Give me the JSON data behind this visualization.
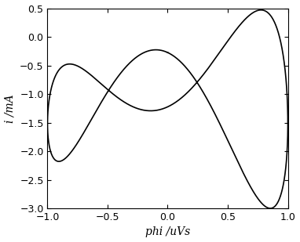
{
  "title": "",
  "xlabel": "phi /uVs",
  "ylabel": "i /mA",
  "xlim": [
    -1.0,
    1.0
  ],
  "ylim": [
    -3.0,
    0.5
  ],
  "xticks": [
    -1.0,
    -0.5,
    0.0,
    0.5,
    1.0
  ],
  "yticks": [
    0.5,
    0,
    -0.5,
    -1.0,
    -1.5,
    -2.0,
    -2.5,
    -3.0
  ],
  "line_color": "#000000",
  "line_width": 1.2,
  "bg_color": "#ffffff",
  "freq": 1.0,
  "amplitude": 1.0,
  "num_points": 4000,
  "alpha": 8.0,
  "a": 0.3,
  "b": -1.0,
  "c": -2.5,
  "scale": 1.0
}
